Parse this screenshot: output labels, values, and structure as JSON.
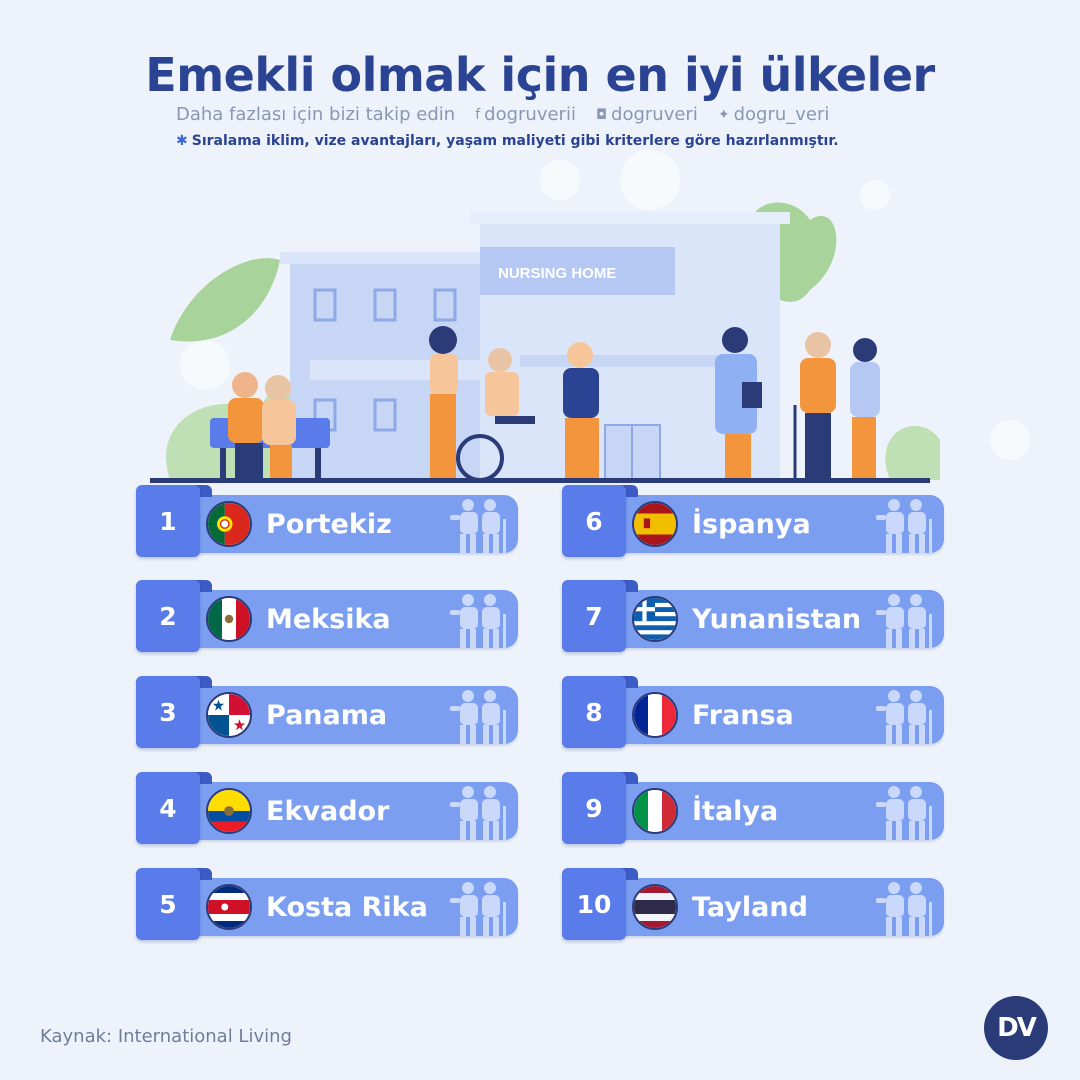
{
  "header": {
    "title": "Emekli olmak için en iyi ülkeler",
    "follow_text": "Daha fazlası için bizi takip edin",
    "social": [
      {
        "icon": "facebook-icon",
        "glyph": "f",
        "handle": "dogruverii"
      },
      {
        "icon": "instagram-icon",
        "glyph": "◘",
        "handle": "dogruveri"
      },
      {
        "icon": "twitter-icon",
        "glyph": "✦",
        "handle": "dogru_veri"
      }
    ],
    "note": "Sıralama iklim, vize avantajları, yaşam maliyeti gibi kriterlere göre hazırlanmıştır.",
    "note_marker": "✱"
  },
  "illustration": {
    "building_sign": "NURSING HOME"
  },
  "rankings": [
    {
      "rank": "1",
      "country": "Portekiz",
      "flag": "portugal"
    },
    {
      "rank": "2",
      "country": "Meksika",
      "flag": "mexico"
    },
    {
      "rank": "3",
      "country": "Panama",
      "flag": "panama"
    },
    {
      "rank": "4",
      "country": "Ekvador",
      "flag": "ecuador"
    },
    {
      "rank": "5",
      "country": "Kosta Rika",
      "flag": "costa-rica"
    },
    {
      "rank": "6",
      "country": "İspanya",
      "flag": "spain"
    },
    {
      "rank": "7",
      "country": "Yunanistan",
      "flag": "greece"
    },
    {
      "rank": "8",
      "country": "Fransa",
      "flag": "france"
    },
    {
      "rank": "9",
      "country": "İtalya",
      "flag": "italy"
    },
    {
      "rank": "10",
      "country": "Tayland",
      "flag": "thailand"
    }
  ],
  "footer": {
    "source": "Kaynak: International Living",
    "logo_text": "DV"
  },
  "colors": {
    "background": "#eef3fb",
    "title": "#2a4393",
    "rank_tab": "#5a7bea",
    "band": "#7b9ef0"
  }
}
